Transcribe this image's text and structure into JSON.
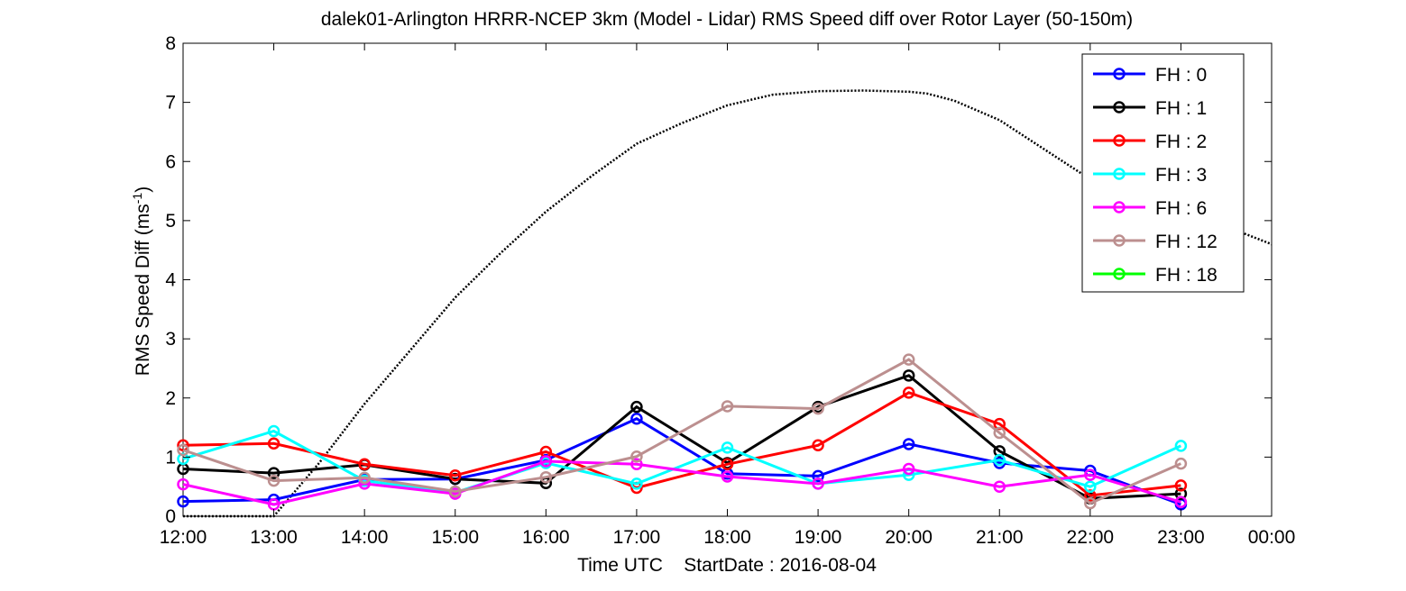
{
  "chart_data": {
    "type": "line",
    "title": "dalek01-Arlington HRRR-NCEP 3km (Model - Lidar) RMS Speed diff over Rotor Layer (50-150m)",
    "xlabel": "Time UTC    StartDate : 2016-08-04",
    "ylabel_main": "RMS Speed Diff (ms",
    "ylabel_sup": "-1",
    "ylabel_close": ")",
    "x_ticks": [
      "12:00",
      "13:00",
      "14:00",
      "15:00",
      "16:00",
      "17:00",
      "18:00",
      "19:00",
      "20:00",
      "21:00",
      "22:00",
      "23:00",
      "00:00"
    ],
    "xlim": [
      0,
      12
    ],
    "ylim": [
      0,
      8
    ],
    "y_ticks": [
      "0",
      "1",
      "2",
      "3",
      "4",
      "5",
      "6",
      "7",
      "8"
    ],
    "grid": false,
    "legend_position": "top-right",
    "series": [
      {
        "name": "FH : 0",
        "color": "#0000ff",
        "values": [
          0.25,
          0.28,
          0.62,
          0.63,
          0.95,
          1.65,
          0.72,
          0.68,
          1.22,
          0.9,
          0.77,
          0.2
        ]
      },
      {
        "name": "FH : 1",
        "color": "#000000",
        "values": [
          0.8,
          0.73,
          0.87,
          0.63,
          0.56,
          1.85,
          0.9,
          1.85,
          2.38,
          1.1,
          0.3,
          0.38
        ]
      },
      {
        "name": "FH : 2",
        "color": "#ff0000",
        "values": [
          1.2,
          1.23,
          0.88,
          0.69,
          1.09,
          0.48,
          0.88,
          1.2,
          2.09,
          1.56,
          0.35,
          0.52
        ]
      },
      {
        "name": "FH : 3",
        "color": "#00ffff",
        "values": [
          0.97,
          1.44,
          0.6,
          0.4,
          0.9,
          0.55,
          1.16,
          0.55,
          0.7,
          0.95,
          0.5,
          1.19
        ]
      },
      {
        "name": "FH : 6",
        "color": "#ff00ff",
        "values": [
          0.54,
          0.2,
          0.55,
          0.38,
          0.93,
          0.88,
          0.67,
          0.55,
          0.8,
          0.5,
          0.7,
          0.24
        ]
      },
      {
        "name": "FH : 12",
        "color": "#bc8f8f",
        "values": [
          1.12,
          0.6,
          0.65,
          0.42,
          0.66,
          1.01,
          1.86,
          1.82,
          2.65,
          1.41,
          0.22,
          0.89
        ]
      },
      {
        "name": "FH : 18",
        "color": "#00ff00",
        "values": []
      }
    ],
    "reference_curve": {
      "style": "dotted",
      "color": "#000000",
      "x": [
        0,
        0.5,
        1.0,
        1.5,
        2.0,
        2.5,
        3.0,
        3.5,
        4.0,
        4.5,
        5.0,
        5.5,
        6.0,
        6.5,
        7.0,
        7.5,
        8.0,
        8.2,
        8.5,
        9.0,
        9.5,
        10.0,
        10.5,
        11.0,
        11.5,
        12.0
      ],
      "y": [
        0.0,
        0.0,
        0.0,
        0.9,
        1.9,
        2.8,
        3.7,
        4.45,
        5.15,
        5.75,
        6.3,
        6.65,
        6.95,
        7.13,
        7.19,
        7.2,
        7.18,
        7.15,
        7.03,
        6.7,
        6.2,
        5.7,
        5.4,
        5.2,
        4.9,
        4.6
      ]
    }
  }
}
